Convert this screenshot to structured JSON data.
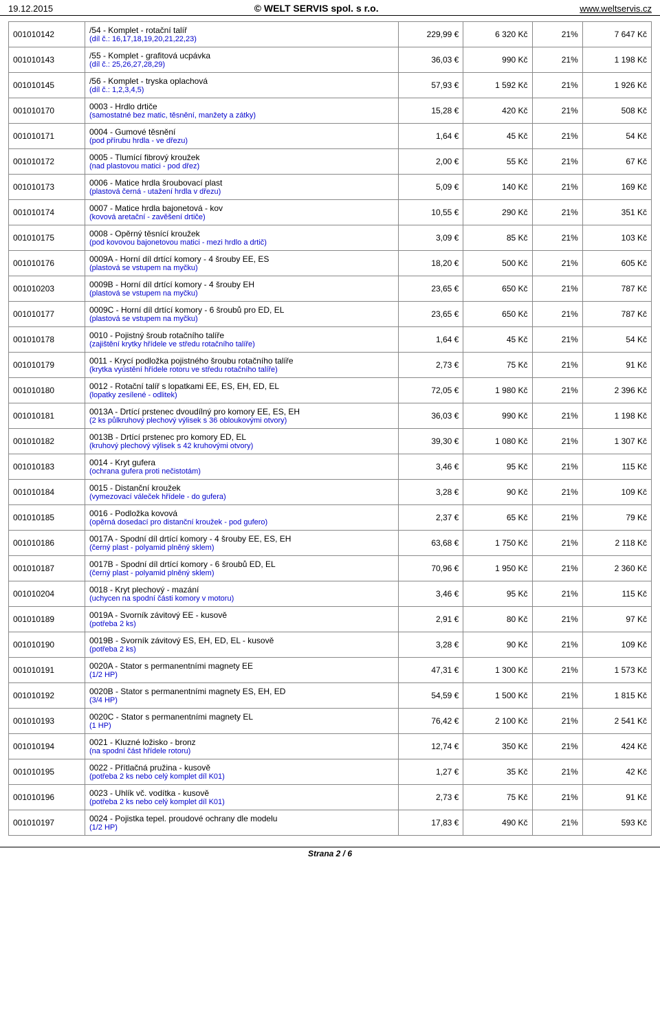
{
  "header": {
    "date": "19.12.2015",
    "company": "© WELT SERVIS spol. s r.o.",
    "url": "www.weltservis.cz"
  },
  "footer": "Strana 2 / 6",
  "rows": [
    {
      "code": "001010142",
      "name": "/54 - Komplet - rotační talíř",
      "sub": "(díl č.: 16,17,18,19,20,21,22,23)",
      "eur": "229,99 €",
      "kc": "6 320 Kč",
      "pct": "21%",
      "kc2": "7 647 Kč"
    },
    {
      "code": "001010143",
      "name": "/55 - Komplet - grafitová ucpávka",
      "sub": "(díl č.: 25,26,27,28,29)",
      "eur": "36,03 €",
      "kc": "990 Kč",
      "pct": "21%",
      "kc2": "1 198 Kč"
    },
    {
      "code": "001010145",
      "name": "/56 - Komplet - tryska oplachová",
      "sub": "(díl č.: 1,2,3,4,5)",
      "eur": "57,93 €",
      "kc": "1 592 Kč",
      "pct": "21%",
      "kc2": "1 926 Kč"
    },
    {
      "code": "001010170",
      "name": "0003 - Hrdlo drtiče",
      "sub": "(samostatné bez matic, těsnění, manžety a zátky)",
      "eur": "15,28 €",
      "kc": "420 Kč",
      "pct": "21%",
      "kc2": "508 Kč"
    },
    {
      "code": "001010171",
      "name": "0004 - Gumové těsnění",
      "sub": "(pod přírubu hrdla - ve dřezu)",
      "eur": "1,64 €",
      "kc": "45 Kč",
      "pct": "21%",
      "kc2": "54 Kč"
    },
    {
      "code": "001010172",
      "name": "0005 - Tlumící fibrový kroužek",
      "sub": "(nad plastovou matici - pod dřez)",
      "eur": "2,00 €",
      "kc": "55 Kč",
      "pct": "21%",
      "kc2": "67 Kč"
    },
    {
      "code": "001010173",
      "name": "0006 - Matice hrdla šroubovací plast",
      "sub": "(plastová černá - utažení hrdla v dřezu)",
      "eur": "5,09 €",
      "kc": "140 Kč",
      "pct": "21%",
      "kc2": "169 Kč"
    },
    {
      "code": "001010174",
      "name": "0007 - Matice hrdla bajonetová - kov",
      "sub": "(kovová aretační - zavěšení drtiče)",
      "eur": "10,55 €",
      "kc": "290 Kč",
      "pct": "21%",
      "kc2": "351 Kč"
    },
    {
      "code": "001010175",
      "name": "0008 - Opěrný těsnící kroužek",
      "sub": "(pod kovovou bajonetovou matici - mezi hrdlo a drtič)",
      "eur": "3,09 €",
      "kc": "85 Kč",
      "pct": "21%",
      "kc2": "103 Kč"
    },
    {
      "code": "001010176",
      "name": "0009A - Horní díl drtící komory - 4 šrouby EE, ES",
      "sub": "(plastová se vstupem na myčku)",
      "eur": "18,20 €",
      "kc": "500 Kč",
      "pct": "21%",
      "kc2": "605 Kč"
    },
    {
      "code": "001010203",
      "name": "0009B - Horní díl drtící komory - 4 šrouby EH",
      "sub": "(plastová se vstupem na myčku)",
      "eur": "23,65 €",
      "kc": "650 Kč",
      "pct": "21%",
      "kc2": "787 Kč"
    },
    {
      "code": "001010177",
      "name": "0009C - Horní díl drtící komory - 6 šroubů pro ED, EL",
      "sub": "(plastová se vstupem na myčku)",
      "eur": "23,65 €",
      "kc": "650 Kč",
      "pct": "21%",
      "kc2": "787 Kč"
    },
    {
      "code": "001010178",
      "name": "0010 - Pojistný šroub rotačního talíře",
      "sub": "(zajištění krytky hřídele ve středu rotačního talíře)",
      "eur": "1,64 €",
      "kc": "45 Kč",
      "pct": "21%",
      "kc2": "54 Kč"
    },
    {
      "code": "001010179",
      "name": "0011 - Krycí podložka pojistného šroubu rotačního talíře",
      "sub": "(krytka vyústění hřídele rotoru ve středu rotačního talíře)",
      "eur": "2,73 €",
      "kc": "75 Kč",
      "pct": "21%",
      "kc2": "91 Kč"
    },
    {
      "code": "001010180",
      "name": "0012 - Rotační talíř s lopatkami EE, ES, EH, ED, EL",
      "sub": "(lopatky zesílené - odlitek)",
      "eur": "72,05 €",
      "kc": "1 980 Kč",
      "pct": "21%",
      "kc2": "2 396 Kč"
    },
    {
      "code": "001010181",
      "name": "0013A - Drtící prstenec dvoudílný pro komory EE, ES, EH",
      "sub": "(2 ks půlkruhový plechový výlisek s 36 obloukovými otvory)",
      "eur": "36,03 €",
      "kc": "990 Kč",
      "pct": "21%",
      "kc2": "1 198 Kč"
    },
    {
      "code": "001010182",
      "name": "0013B - Drtící prstenec pro komory ED, EL",
      "sub": "(kruhový plechový výlisek s 42 kruhovými otvory)",
      "eur": "39,30 €",
      "kc": "1 080 Kč",
      "pct": "21%",
      "kc2": "1 307 Kč"
    },
    {
      "code": "001010183",
      "name": "0014 - Kryt gufera",
      "sub": "(ochrana gufera proti nečistotám)",
      "eur": "3,46 €",
      "kc": "95 Kč",
      "pct": "21%",
      "kc2": "115 Kč"
    },
    {
      "code": "001010184",
      "name": "0015 - Distanční kroužek",
      "sub": "(vymezovací váleček hřídele - do gufera)",
      "eur": "3,28 €",
      "kc": "90 Kč",
      "pct": "21%",
      "kc2": "109 Kč"
    },
    {
      "code": "001010185",
      "name": "0016 - Podložka kovová",
      "sub": "(opěrná dosedací pro distanční kroužek - pod gufero)",
      "eur": "2,37 €",
      "kc": "65 Kč",
      "pct": "21%",
      "kc2": "79 Kč"
    },
    {
      "code": "001010186",
      "name": "0017A - Spodní díl drtící komory - 4 šrouby EE, ES, EH",
      "sub": "(černý plast - polyamid plněný sklem)",
      "eur": "63,68 €",
      "kc": "1 750 Kč",
      "pct": "21%",
      "kc2": "2 118 Kč"
    },
    {
      "code": "001010187",
      "name": "0017B - Spodní díl drtící komory - 6 šroubů ED, EL",
      "sub": "(černý plast - polyamid plněný sklem)",
      "eur": "70,96 €",
      "kc": "1 950 Kč",
      "pct": "21%",
      "kc2": "2 360 Kč"
    },
    {
      "code": "001010204",
      "name": "0018 - Kryt plechový - mazání",
      "sub": "(uchycen na spodní části komory v motoru)",
      "eur": "3,46 €",
      "kc": "95 Kč",
      "pct": "21%",
      "kc2": "115 Kč"
    },
    {
      "code": "001010189",
      "name": "0019A - Svorník závitový EE - kusově",
      "sub": "(potřeba 2 ks)",
      "eur": "2,91 €",
      "kc": "80 Kč",
      "pct": "21%",
      "kc2": "97 Kč"
    },
    {
      "code": "001010190",
      "name": "0019B - Svorník závitový ES, EH, ED, EL - kusově",
      "sub": "(potřeba 2 ks)",
      "eur": "3,28 €",
      "kc": "90 Kč",
      "pct": "21%",
      "kc2": "109 Kč"
    },
    {
      "code": "001010191",
      "name": "0020A - Stator s permanentními magnety EE",
      "sub": "(1/2 HP)",
      "eur": "47,31 €",
      "kc": "1 300 Kč",
      "pct": "21%",
      "kc2": "1 573 Kč"
    },
    {
      "code": "001010192",
      "name": "0020B - Stator s permanentními magnety ES, EH, ED",
      "sub": "(3/4 HP)",
      "eur": "54,59 €",
      "kc": "1 500 Kč",
      "pct": "21%",
      "kc2": "1 815 Kč"
    },
    {
      "code": "001010193",
      "name": "0020C - Stator s permanentními magnety EL",
      "sub": "(1 HP)",
      "eur": "76,42 €",
      "kc": "2 100 Kč",
      "pct": "21%",
      "kc2": "2 541 Kč"
    },
    {
      "code": "001010194",
      "name": "0021 - Kluzné ložisko - bronz",
      "sub": "(na spodní část hřídele rotoru)",
      "eur": "12,74 €",
      "kc": "350 Kč",
      "pct": "21%",
      "kc2": "424 Kč"
    },
    {
      "code": "001010195",
      "name": "0022 - Přítlačná pružina - kusově",
      "sub": "(potřeba 2 ks nebo celý komplet díl K01)",
      "eur": "1,27 €",
      "kc": "35 Kč",
      "pct": "21%",
      "kc2": "42 Kč"
    },
    {
      "code": "001010196",
      "name": "0023 - Uhlík vč. vodítka - kusově",
      "sub": "(potřeba 2 ks nebo celý komplet díl K01)",
      "eur": "2,73 €",
      "kc": "75 Kč",
      "pct": "21%",
      "kc2": "91 Kč"
    },
    {
      "code": "001010197",
      "name": "0024 - Pojistka tepel. proudové ochrany dle modelu",
      "sub": "(1/2 HP)",
      "eur": "17,83 €",
      "kc": "490 Kč",
      "pct": "21%",
      "kc2": "593 Kč"
    }
  ]
}
